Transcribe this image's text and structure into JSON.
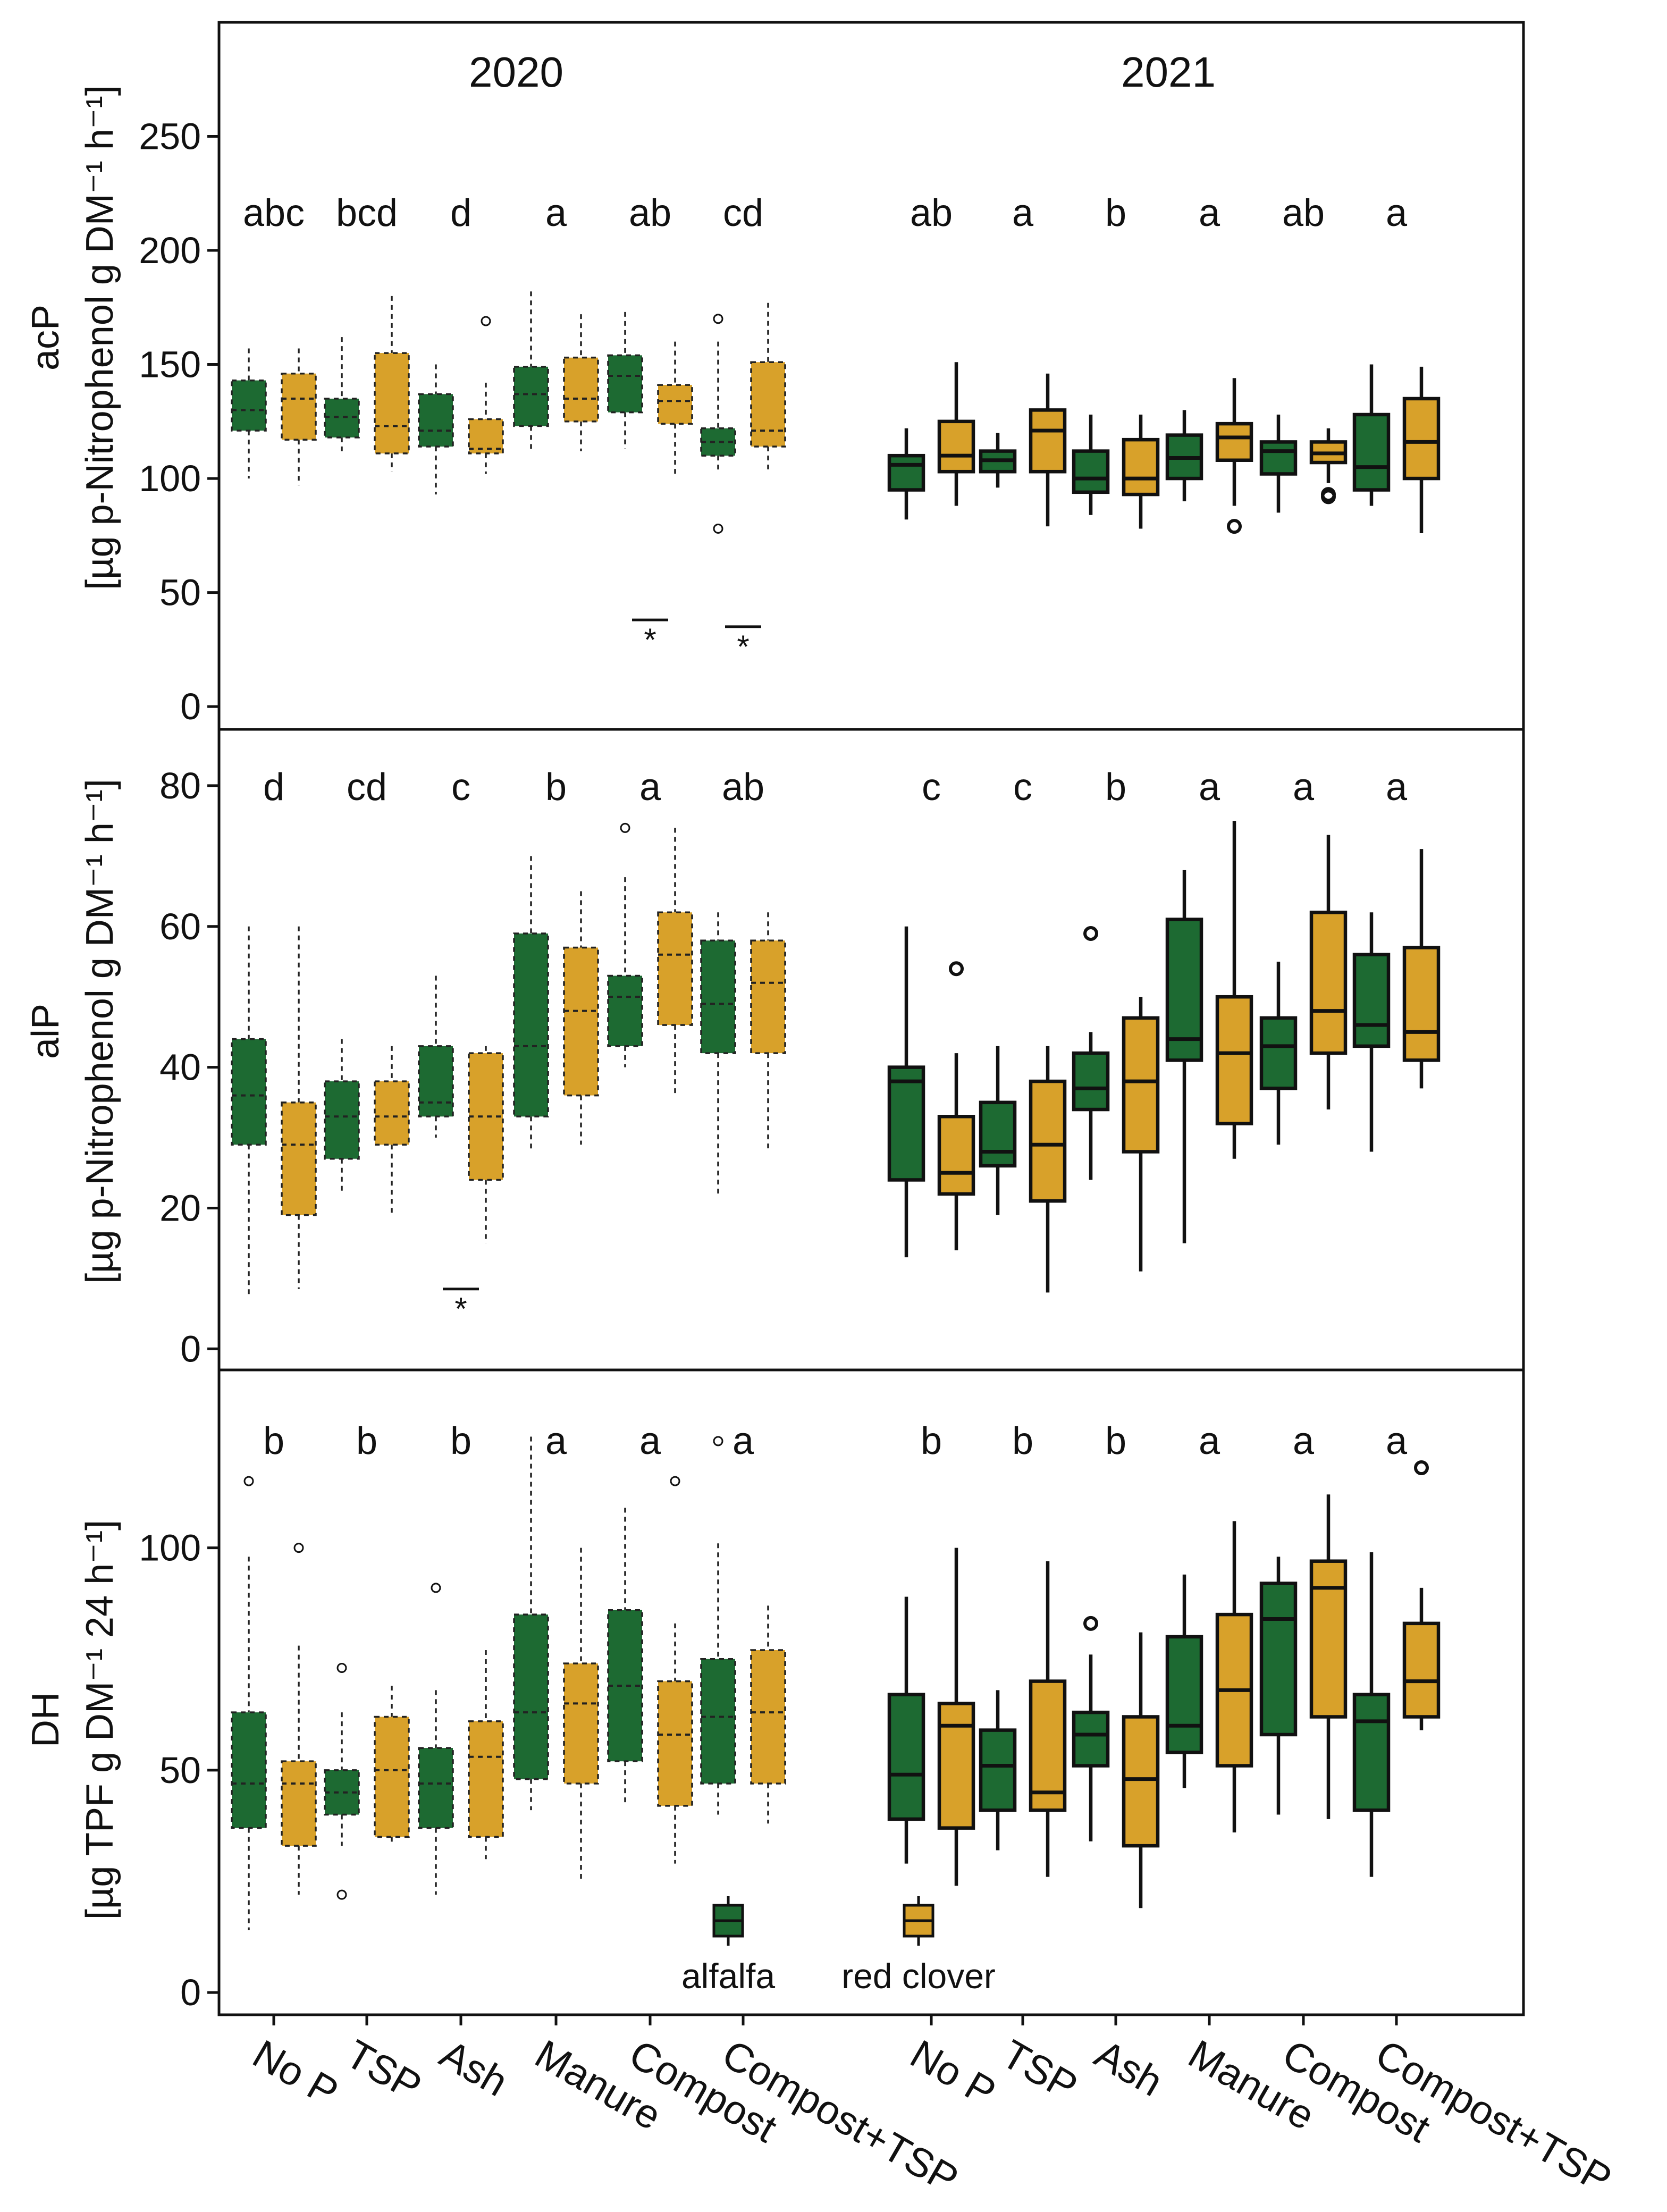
{
  "chart_data": {
    "type": "boxplot",
    "years": [
      "2020",
      "2021"
    ],
    "categories": [
      "No P",
      "TSP",
      "Ash",
      "Manure",
      "Compost",
      "Compost+TSP"
    ],
    "legend": [
      {
        "name": "alfalfa",
        "color": "#1d6a32"
      },
      {
        "name": "red clover",
        "color": "#d8a12a"
      }
    ],
    "colors": {
      "alfalfa": "#1d6a32",
      "red_clover": "#d8a12a"
    },
    "x_tick_labels": [
      "No P",
      "TSP",
      "Ash",
      "Manure",
      "Compost",
      "Compost+TSP",
      "No P",
      "TSP",
      "Ash",
      "Manure",
      "Compost",
      "Compost+TSP"
    ],
    "panels": [
      {
        "id": "acP",
        "ylabel_line1": "acP",
        "ylabel_line2": "[µg p-Nitrophenol g DM⁻¹ h⁻¹]",
        "ylim": [
          -10,
          300
        ],
        "yticks": [
          0,
          50,
          100,
          150,
          200,
          250
        ],
        "letters_2020": [
          "abc",
          "bcd",
          "d",
          "a",
          "ab",
          "cd"
        ],
        "letters_2021": [
          "ab",
          "a",
          "b",
          "a",
          "ab",
          "a"
        ],
        "significance": [
          {
            "year": "2020",
            "category": "Compost",
            "y": 38,
            "label": "*"
          },
          {
            "year": "2020",
            "category": "Compost+TSP",
            "y": 35,
            "label": "*"
          }
        ],
        "boxes": {
          "2020": {
            "alfalfa": [
              {
                "min": 100,
                "q1": 121,
                "median": 130,
                "q3": 143,
                "max": 157,
                "outliers": []
              },
              {
                "min": 112,
                "q1": 118,
                "median": 127,
                "q3": 135,
                "max": 162,
                "outliers": []
              },
              {
                "min": 93,
                "q1": 114,
                "median": 121,
                "q3": 137,
                "max": 150,
                "outliers": []
              },
              {
                "min": 112,
                "q1": 123,
                "median": 137,
                "q3": 149,
                "max": 182,
                "outliers": []
              },
              {
                "min": 113,
                "q1": 129,
                "median": 145,
                "q3": 154,
                "max": 173,
                "outliers": []
              },
              {
                "min": 103,
                "q1": 110,
                "median": 116,
                "q3": 122,
                "max": 160,
                "outliers": [
                  78,
                  170
                ]
              }
            ],
            "red_clover": [
              {
                "min": 97,
                "q1": 117,
                "median": 135,
                "q3": 146,
                "max": 157,
                "outliers": []
              },
              {
                "min": 103,
                "q1": 111,
                "median": 123,
                "q3": 155,
                "max": 180,
                "outliers": []
              },
              {
                "min": 102,
                "q1": 111,
                "median": 113,
                "q3": 126,
                "max": 142,
                "outliers": [
                  169
                ]
              },
              {
                "min": 112,
                "q1": 125,
                "median": 135,
                "q3": 153,
                "max": 172,
                "outliers": []
              },
              {
                "min": 102,
                "q1": 124,
                "median": 134,
                "q3": 141,
                "max": 160,
                "outliers": []
              },
              {
                "min": 104,
                "q1": 114,
                "median": 121,
                "q3": 151,
                "max": 177,
                "outliers": []
              }
            ]
          },
          "2021": {
            "alfalfa": [
              {
                "min": 82,
                "q1": 95,
                "median": 106,
                "q3": 110,
                "max": 122,
                "outliers": []
              },
              {
                "min": 96,
                "q1": 103,
                "median": 108,
                "q3": 112,
                "max": 120,
                "outliers": []
              },
              {
                "min": 84,
                "q1": 94,
                "median": 100,
                "q3": 112,
                "max": 128,
                "outliers": []
              },
              {
                "min": 90,
                "q1": 100,
                "median": 109,
                "q3": 119,
                "max": 130,
                "outliers": []
              },
              {
                "min": 85,
                "q1": 102,
                "median": 112,
                "q3": 116,
                "max": 128,
                "outliers": []
              },
              {
                "min": 88,
                "q1": 95,
                "median": 105,
                "q3": 128,
                "max": 150,
                "outliers": []
              }
            ],
            "red_clover": [
              {
                "min": 88,
                "q1": 103,
                "median": 110,
                "q3": 125,
                "max": 151,
                "outliers": []
              },
              {
                "min": 79,
                "q1": 103,
                "median": 121,
                "q3": 130,
                "max": 146,
                "outliers": []
              },
              {
                "min": 78,
                "q1": 93,
                "median": 100,
                "q3": 117,
                "max": 128,
                "outliers": []
              },
              {
                "min": 88,
                "q1": 108,
                "median": 118,
                "q3": 124,
                "max": 144,
                "outliers": [
                  79
                ]
              },
              {
                "min": 98,
                "q1": 107,
                "median": 111,
                "q3": 116,
                "max": 122,
                "outliers": [
                  93,
                  92
                ]
              },
              {
                "min": 76,
                "q1": 100,
                "median": 116,
                "q3": 135,
                "max": 149,
                "outliers": []
              }
            ]
          }
        }
      },
      {
        "id": "alP",
        "ylabel_line1": "alP",
        "ylabel_line2": "[µg p-Nitrophenol g DM⁻¹ h⁻¹]",
        "ylim": [
          -3,
          88
        ],
        "yticks": [
          0,
          20,
          40,
          60,
          80
        ],
        "letters_2020": [
          "d",
          "cd",
          "c",
          "b",
          "a",
          "ab"
        ],
        "letters_2021": [
          "c",
          "c",
          "b",
          "a",
          "a",
          "a"
        ],
        "significance": [
          {
            "year": "2020",
            "category": "Ash",
            "y": 8.5,
            "label": "*"
          }
        ],
        "boxes": {
          "2020": {
            "alfalfa": [
              {
                "min": 7.5,
                "q1": 29,
                "median": 36,
                "q3": 44,
                "max": 60,
                "outliers": []
              },
              {
                "min": 22,
                "q1": 27,
                "median": 33,
                "q3": 38,
                "max": 44,
                "outliers": []
              },
              {
                "min": 30,
                "q1": 33,
                "median": 35,
                "q3": 43,
                "max": 53,
                "outliers": []
              },
              {
                "min": 28,
                "q1": 33,
                "median": 43,
                "q3": 59,
                "max": 70,
                "outliers": []
              },
              {
                "min": 40,
                "q1": 43,
                "median": 50,
                "q3": 53,
                "max": 67,
                "outliers": [
                  74
                ]
              },
              {
                "min": 22,
                "q1": 42,
                "median": 49,
                "q3": 58,
                "max": 62,
                "outliers": []
              }
            ],
            "red_clover": [
              {
                "min": 8.5,
                "q1": 19,
                "median": 29,
                "q3": 35,
                "max": 60,
                "outliers": []
              },
              {
                "min": 19,
                "q1": 29,
                "median": 33,
                "q3": 38,
                "max": 43,
                "outliers": []
              },
              {
                "min": 15,
                "q1": 24,
                "median": 33,
                "q3": 42,
                "max": 43,
                "outliers": []
              },
              {
                "min": 29,
                "q1": 36,
                "median": 48,
                "q3": 57,
                "max": 65,
                "outliers": []
              },
              {
                "min": 36,
                "q1": 46,
                "median": 56,
                "q3": 62,
                "max": 74,
                "outliers": []
              },
              {
                "min": 28,
                "q1": 42,
                "median": 52,
                "q3": 58,
                "max": 62,
                "outliers": []
              }
            ]
          },
          "2021": {
            "alfalfa": [
              {
                "min": 13,
                "q1": 24,
                "median": 38,
                "q3": 40,
                "max": 60,
                "outliers": []
              },
              {
                "min": 19,
                "q1": 26,
                "median": 28,
                "q3": 35,
                "max": 43,
                "outliers": []
              },
              {
                "min": 24,
                "q1": 34,
                "median": 37,
                "q3": 42,
                "max": 45,
                "outliers": [
                  59
                ]
              },
              {
                "min": 15,
                "q1": 41,
                "median": 44,
                "q3": 61,
                "max": 68,
                "outliers": []
              },
              {
                "min": 29,
                "q1": 37,
                "median": 43,
                "q3": 47,
                "max": 55,
                "outliers": []
              },
              {
                "min": 28,
                "q1": 43,
                "median": 46,
                "q3": 56,
                "max": 62,
                "outliers": []
              }
            ],
            "red_clover": [
              {
                "min": 14,
                "q1": 22,
                "median": 25,
                "q3": 33,
                "max": 42,
                "outliers": [
                  54
                ]
              },
              {
                "min": 8,
                "q1": 21,
                "median": 29,
                "q3": 38,
                "max": 43,
                "outliers": []
              },
              {
                "min": 11,
                "q1": 28,
                "median": 38,
                "q3": 47,
                "max": 50,
                "outliers": []
              },
              {
                "min": 27,
                "q1": 32,
                "median": 42,
                "q3": 50,
                "max": 75,
                "outliers": []
              },
              {
                "min": 34,
                "q1": 42,
                "median": 48,
                "q3": 62,
                "max": 73,
                "outliers": []
              },
              {
                "min": 37,
                "q1": 41,
                "median": 45,
                "q3": 57,
                "max": 71,
                "outliers": []
              }
            ]
          }
        }
      },
      {
        "id": "DH",
        "ylabel_line1": "DH",
        "ylabel_line2": "[µg TPF g DM⁻¹ 24 h⁻¹]",
        "ylim": [
          -5,
          140
        ],
        "yticks": [
          0,
          50,
          100
        ],
        "letters_2020": [
          "b",
          "b",
          "b",
          "a",
          "a",
          "a"
        ],
        "letters_2021": [
          "b",
          "b",
          "b",
          "a",
          "a",
          "a"
        ],
        "significance": [],
        "boxes": {
          "2020": {
            "alfalfa": [
              {
                "min": 14,
                "q1": 37,
                "median": 47,
                "q3": 63,
                "max": 98,
                "outliers": [
                  115
                ]
              },
              {
                "min": 33,
                "q1": 40,
                "median": 45,
                "q3": 50,
                "max": 63,
                "outliers": [
                  73,
                  22
                ]
              },
              {
                "min": 22,
                "q1": 37,
                "median": 47,
                "q3": 55,
                "max": 68,
                "outliers": [
                  91
                ]
              },
              {
                "min": 41,
                "q1": 48,
                "median": 63,
                "q3": 85,
                "max": 125,
                "outliers": []
              },
              {
                "min": 42,
                "q1": 52,
                "median": 69,
                "q3": 86,
                "max": 109,
                "outliers": []
              },
              {
                "min": 40,
                "q1": 47,
                "median": 62,
                "q3": 75,
                "max": 101,
                "outliers": [
                  124
                ]
              }
            ],
            "red_clover": [
              {
                "min": 22,
                "q1": 33,
                "median": 47,
                "q3": 52,
                "max": 78,
                "outliers": [
                  100
                ]
              },
              {
                "min": 33,
                "q1": 35,
                "median": 50,
                "q3": 62,
                "max": 69,
                "outliers": []
              },
              {
                "min": 30,
                "q1": 35,
                "median": 53,
                "q3": 61,
                "max": 77,
                "outliers": []
              },
              {
                "min": 25,
                "q1": 47,
                "median": 65,
                "q3": 74,
                "max": 100,
                "outliers": []
              },
              {
                "min": 29,
                "q1": 42,
                "median": 58,
                "q3": 70,
                "max": 83,
                "outliers": [
                  115
                ]
              },
              {
                "min": 38,
                "q1": 47,
                "median": 63,
                "q3": 77,
                "max": 87,
                "outliers": []
              }
            ]
          },
          "2021": {
            "alfalfa": [
              {
                "min": 29,
                "q1": 39,
                "median": 49,
                "q3": 67,
                "max": 89,
                "outliers": []
              },
              {
                "min": 32,
                "q1": 41,
                "median": 51,
                "q3": 59,
                "max": 68,
                "outliers": []
              },
              {
                "min": 34,
                "q1": 51,
                "median": 58,
                "q3": 63,
                "max": 76,
                "outliers": [
                  83
                ]
              },
              {
                "min": 46,
                "q1": 54,
                "median": 60,
                "q3": 80,
                "max": 94,
                "outliers": []
              },
              {
                "min": 40,
                "q1": 58,
                "median": 84,
                "q3": 92,
                "max": 98,
                "outliers": []
              },
              {
                "min": 26,
                "q1": 41,
                "median": 61,
                "q3": 67,
                "max": 99,
                "outliers": []
              }
            ],
            "red_clover": [
              {
                "min": 24,
                "q1": 37,
                "median": 60,
                "q3": 65,
                "max": 100,
                "outliers": []
              },
              {
                "min": 26,
                "q1": 41,
                "median": 45,
                "q3": 70,
                "max": 97,
                "outliers": []
              },
              {
                "min": 19,
                "q1": 33,
                "median": 48,
                "q3": 62,
                "max": 81,
                "outliers": []
              },
              {
                "min": 36,
                "q1": 51,
                "median": 68,
                "q3": 85,
                "max": 106,
                "outliers": []
              },
              {
                "min": 39,
                "q1": 62,
                "median": 91,
                "q3": 97,
                "max": 112,
                "outliers": []
              },
              {
                "min": 59,
                "q1": 62,
                "median": 70,
                "q3": 83,
                "max": 91,
                "outliers": [
                  118
                ]
              }
            ]
          }
        }
      }
    ]
  }
}
